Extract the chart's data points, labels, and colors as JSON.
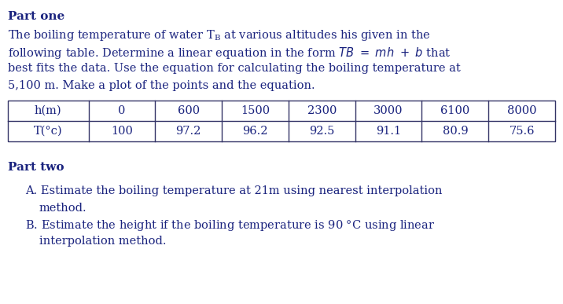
{
  "part_one_bold": "Part one",
  "line1": "The boiling temperature of water T$_{B}$ at various altitudes his given in the",
  "line2a": "following table. Determine a linear equation in the form ",
  "line2b": "$\\mathit{TB}$ = $\\mathit{mh}$ + $\\mathit{b}$ that",
  "line3": "best fits the data. Use the equation for calculating the boiling temperature at",
  "line4": "5,100 m. Make a plot of the points and the equation.",
  "table_headers": [
    "h(m)",
    "0",
    "600",
    "1500",
    "2300",
    "3000",
    "6100",
    "8000"
  ],
  "table_row2": [
    "T(°c)",
    "100",
    "97.2",
    "96.2",
    "92.5",
    "91.1",
    "80.9",
    "75.6"
  ],
  "part_two_bold": "Part two",
  "itemA_line1": "A. Estimate the boiling temperature at 21m using nearest interpolation",
  "itemA_line2": "method.",
  "itemB_line1": "B. Estimate the height if the boiling temperature is 90 °C using linear",
  "itemB_line2": "interpolation method.",
  "bg_color": "#ffffff",
  "text_color": "#1a237e",
  "font_size_body": 10.5,
  "font_size_bold": 11,
  "table_line_color": "#333366",
  "font_family": "DejaVu Serif"
}
